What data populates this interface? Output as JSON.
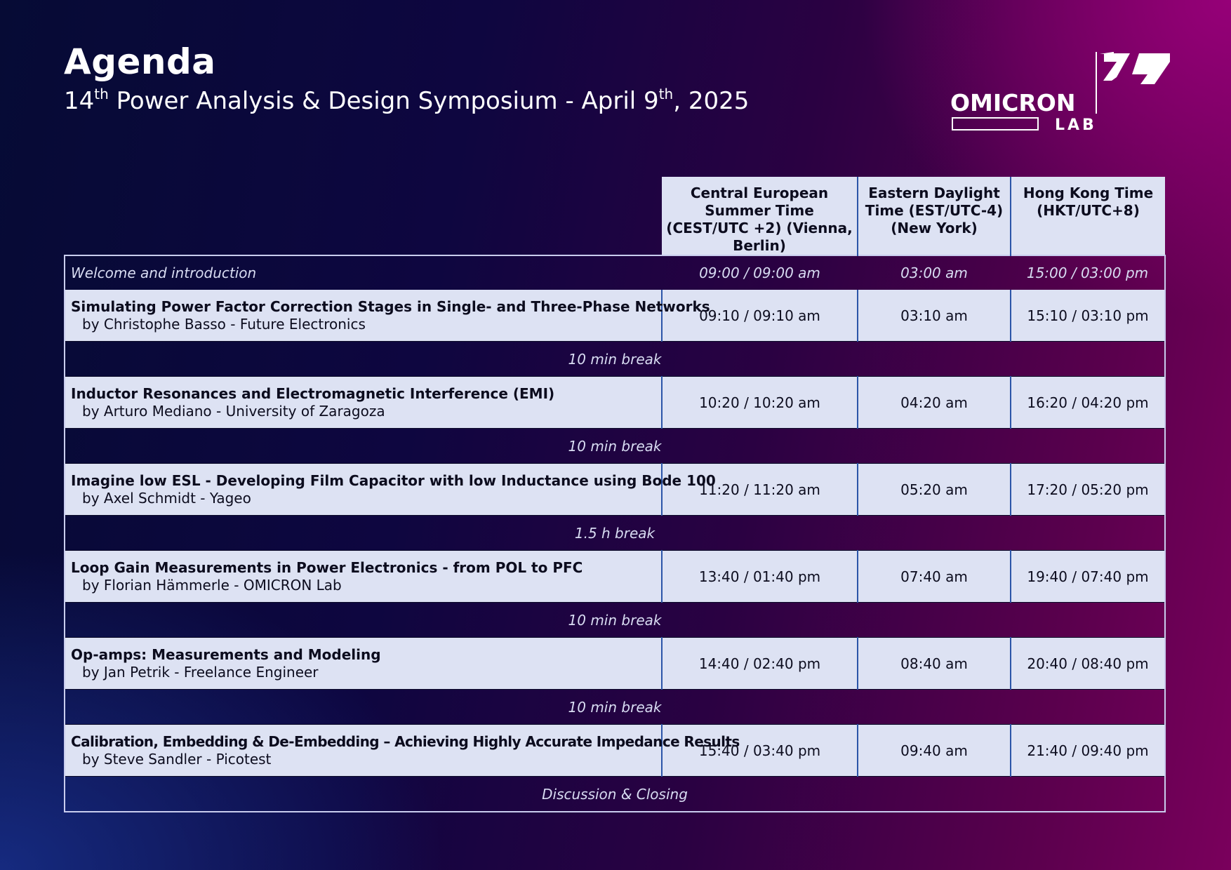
{
  "header": {
    "title": "Agenda",
    "subtitle_prefix_num": "14",
    "subtitle_prefix_sup": "th",
    "subtitle_mid": " Power Analysis & Design Symposium - April 9",
    "subtitle_date_sup": "th",
    "subtitle_year": ", 2025"
  },
  "logo": {
    "brand": "OMICRON",
    "sub": "LAB"
  },
  "columns": [
    "Central European Summer Time (CEST/UTC +2) (Vienna, Berlin)",
    "Eastern Daylight Time (EST/UTC-4) (New York)",
    "Hong Kong Time (HKT/UTC+8)"
  ],
  "welcome": {
    "label": "Welcome and introduction",
    "cest": "09:00 / 09:00 am",
    "edt": "03:00 am",
    "hkt": "15:00 / 03:00 pm"
  },
  "sessions": [
    {
      "title": "Simulating Power Factor Correction Stages in Single- and Three-Phase Networks",
      "speaker": "by Christophe Basso - Future Electronics",
      "cest": "09:10 / 09:10 am",
      "edt": "03:10 am",
      "hkt": "15:10 / 03:10 pm"
    },
    {
      "title": "Inductor Resonances and Electromagnetic Interference (EMI)",
      "speaker": "by Arturo Mediano - University of Zaragoza",
      "cest": "10:20 / 10:20 am",
      "edt": "04:20 am",
      "hkt": "16:20 / 04:20 pm"
    },
    {
      "title": "Imagine low ESL - Developing Film Capacitor with low Inductance using Bode 100",
      "speaker": "by Axel Schmidt - Yageo",
      "cest": "11:20 / 11:20 am",
      "edt": "05:20 am",
      "hkt": "17:20 / 05:20 pm"
    },
    {
      "title": "Loop Gain Measurements in Power Electronics - from POL to PFC",
      "speaker": "by Florian Hämmerle - OMICRON Lab",
      "cest": "13:40 / 01:40 pm",
      "edt": "07:40 am",
      "hkt": "19:40 / 07:40 pm"
    },
    {
      "title": "Op-amps: Measurements and Modeling",
      "speaker": "by Jan Petrik - Freelance Engineer",
      "cest": "14:40 / 02:40 pm",
      "edt": "08:40 am",
      "hkt": "20:40 / 08:40 pm"
    },
    {
      "title": "Calibration, Embedding & De-Embedding – Achieving Highly Accurate Impedance Results",
      "speaker": "by Steve Sandler - Picotest",
      "cest": "15:40 / 03:40 pm",
      "edt": "09:40 am",
      "hkt": "21:40 / 09:40 pm"
    }
  ],
  "breaks": [
    "10 min break",
    "10 min break",
    "1.5 h break",
    "10 min break",
    "10 min break",
    "Discussion & Closing"
  ]
}
